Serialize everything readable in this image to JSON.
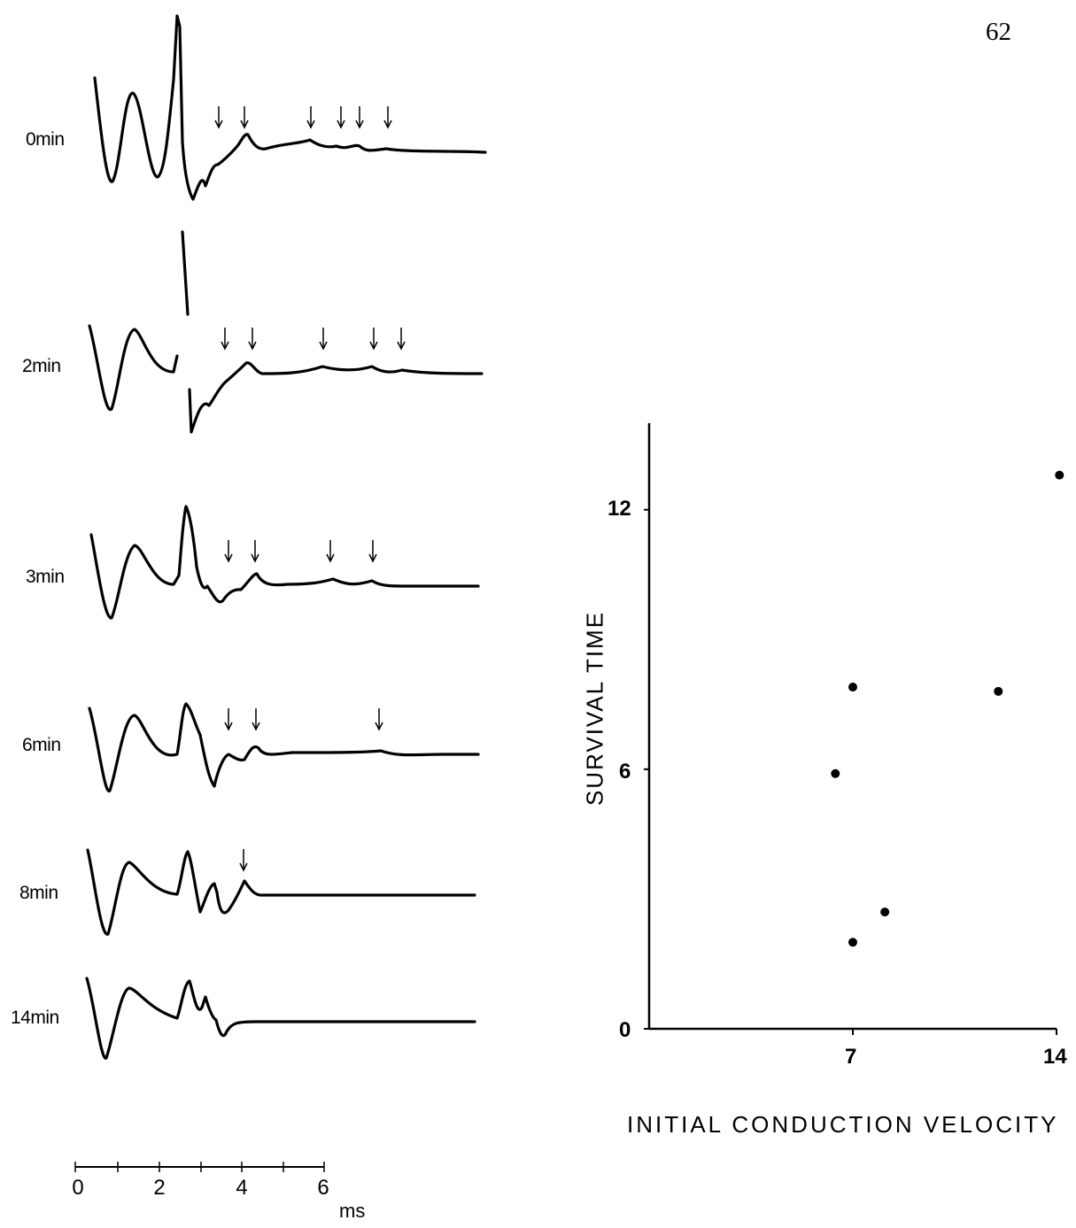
{
  "page_number": "62",
  "traces": {
    "labels": [
      "0min",
      "2min",
      "3min",
      "6min",
      "8min",
      "14min"
    ]
  },
  "time_scale": {
    "ticks": [
      "0",
      "2",
      "4",
      "6"
    ],
    "unit": "ms"
  },
  "chart_data": {
    "type": "scatter",
    "xlabel": "INITIAL CONDUCTION VELOCITY",
    "ylabel": "SURVIVAL TIME",
    "xlim": [
      0,
      14
    ],
    "ylim": [
      0,
      14
    ],
    "xticks": [
      "7",
      "14"
    ],
    "yticks": [
      "0",
      "6",
      "12"
    ],
    "points": [
      {
        "x": 6.4,
        "y": 5.9
      },
      {
        "x": 7.0,
        "y": 7.9
      },
      {
        "x": 7.0,
        "y": 2.0
      },
      {
        "x": 8.1,
        "y": 2.7
      },
      {
        "x": 12.0,
        "y": 7.8
      },
      {
        "x": 14.1,
        "y": 12.8
      }
    ],
    "grid": false
  }
}
